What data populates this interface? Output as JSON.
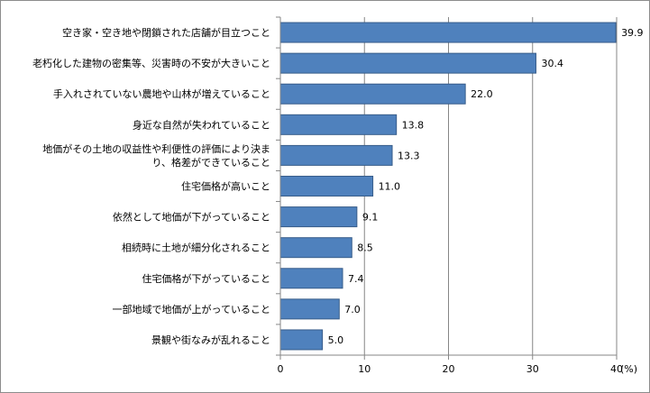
{
  "chart_data": {
    "type": "bar",
    "orientation": "horizontal",
    "categories": [
      [
        "空き家・空き地や閉鎖された店舗が目立つこと"
      ],
      [
        "老朽化した建物の密集等、災害時の不安が大きいこと"
      ],
      [
        "手入れされていない農地や山林が増えていること"
      ],
      [
        "身近な自然が失われていること"
      ],
      [
        "地価がその土地の収益性や利便性の評価により決ま",
        "り、格差ができていること"
      ],
      [
        "住宅価格が高いこと"
      ],
      [
        "依然として地価が下がっていること"
      ],
      [
        "相続時に土地が細分化されること"
      ],
      [
        "住宅価格が下がっていること"
      ],
      [
        "一部地域で地価が上がっていること"
      ],
      [
        "景観や街なみが乱れること"
      ]
    ],
    "values": [
      39.9,
      30.4,
      22.0,
      13.8,
      13.3,
      11.0,
      9.1,
      8.5,
      7.4,
      7.0,
      5.0
    ],
    "value_labels": [
      "39.9",
      "30.4",
      "22.0",
      "13.8",
      "13.3",
      "11.0",
      "9.1",
      "8.5",
      "7.4",
      "7.0",
      "5.0"
    ],
    "xticks": [
      "0",
      "10",
      "20",
      "30",
      "40"
    ],
    "xunit": "(%)",
    "xlim": [
      0,
      40
    ],
    "grid": true,
    "bar_color": "#4f81bd",
    "bar_edge_color": "#385d8a",
    "grid_color": "#868686"
  }
}
